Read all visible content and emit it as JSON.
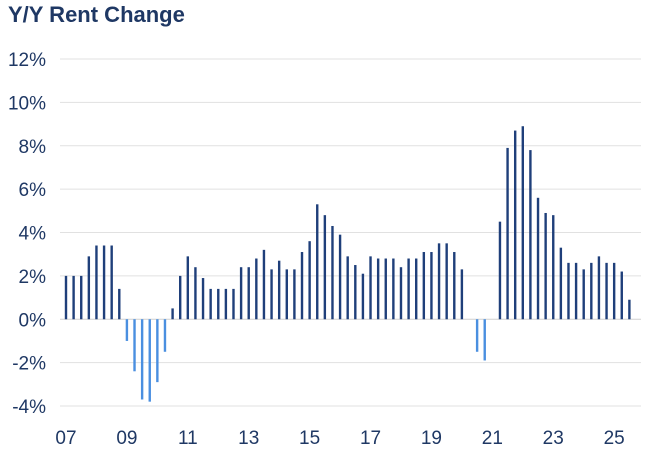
{
  "chart_data": {
    "type": "bar",
    "title": "Y/Y Rent Change",
    "xlabel": "",
    "ylabel": "",
    "ylim": [
      -4,
      12
    ],
    "yticks": [
      -4,
      -2,
      0,
      2,
      4,
      6,
      8,
      10,
      12
    ],
    "ytick_labels": [
      "-4%",
      "-2%",
      "0%",
      "2%",
      "4%",
      "6%",
      "8%",
      "10%",
      "12%"
    ],
    "xlim": [
      2007.0,
      2025.75
    ],
    "xticks": [
      2007,
      2009,
      2011,
      2013,
      2015,
      2017,
      2019,
      2021,
      2023,
      2025
    ],
    "xtick_labels": [
      "07",
      "09",
      "11",
      "13",
      "15",
      "17",
      "19",
      "21",
      "23",
      "25"
    ],
    "grid": true,
    "colors": {
      "positive": "#1f3f7a",
      "negative": "#4a8fe0",
      "text": "#1f3864",
      "grid": "#e1e1e1"
    },
    "series": [
      {
        "name": "Y/Y Rent Change",
        "x": [
          2007.0,
          2007.25,
          2007.5,
          2007.75,
          2008.0,
          2008.25,
          2008.5,
          2008.75,
          2009.0,
          2009.25,
          2009.5,
          2009.75,
          2010.0,
          2010.25,
          2010.5,
          2010.75,
          2011.0,
          2011.25,
          2011.5,
          2011.75,
          2012.0,
          2012.25,
          2012.5,
          2012.75,
          2013.0,
          2013.25,
          2013.5,
          2013.75,
          2014.0,
          2014.25,
          2014.5,
          2014.75,
          2015.0,
          2015.25,
          2015.5,
          2015.75,
          2016.0,
          2016.25,
          2016.5,
          2016.75,
          2017.0,
          2017.25,
          2017.5,
          2017.75,
          2018.0,
          2018.25,
          2018.5,
          2018.75,
          2019.0,
          2019.25,
          2019.5,
          2019.75,
          2020.0,
          2020.5,
          2020.75,
          2021.25,
          2021.5,
          2021.75,
          2022.0,
          2022.25,
          2022.5,
          2022.75,
          2023.0,
          2023.25,
          2023.5,
          2023.75,
          2024.0,
          2024.25,
          2024.5,
          2024.75,
          2025.0,
          2025.25,
          2025.5
        ],
        "values": [
          2.0,
          2.0,
          2.0,
          2.9,
          3.4,
          3.4,
          3.4,
          1.4,
          -1.0,
          -2.4,
          -3.7,
          -3.8,
          -2.9,
          -1.5,
          0.5,
          2.0,
          2.9,
          2.4,
          1.9,
          1.4,
          1.4,
          1.4,
          1.4,
          2.4,
          2.4,
          2.8,
          3.2,
          2.3,
          2.7,
          2.3,
          2.3,
          3.1,
          3.6,
          5.3,
          4.8,
          4.3,
          3.9,
          2.9,
          2.5,
          2.1,
          2.9,
          2.8,
          2.8,
          2.8,
          2.4,
          2.8,
          2.8,
          3.1,
          3.1,
          3.5,
          3.5,
          3.1,
          2.3,
          -1.5,
          -1.9,
          4.5,
          7.9,
          8.7,
          8.9,
          7.8,
          5.6,
          4.9,
          4.8,
          3.3,
          2.6,
          2.6,
          2.3,
          2.6,
          2.9,
          2.6,
          2.6,
          2.2,
          0.9
        ]
      }
    ]
  }
}
